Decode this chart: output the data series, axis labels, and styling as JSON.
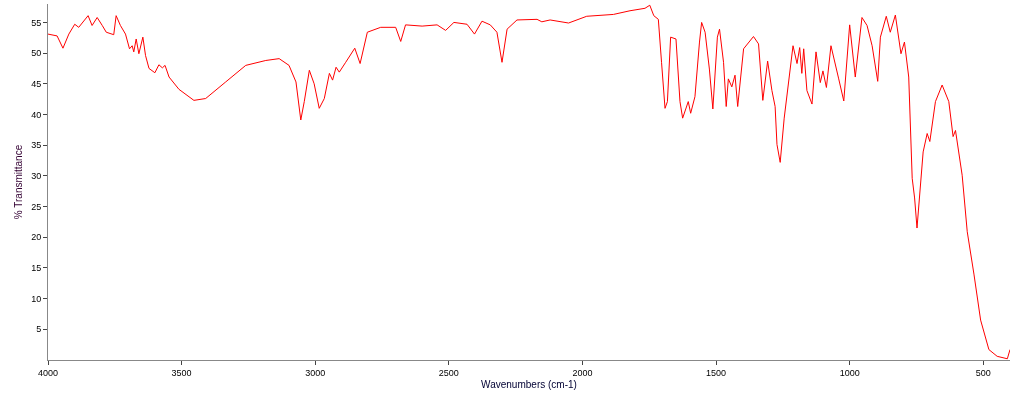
{
  "chart_data": {
    "type": "line",
    "xlabel": "Wavenumbers (cm-1)",
    "ylabel": "% Transmittance",
    "xlim": [
      4000,
      400
    ],
    "xticks": [
      4000,
      3500,
      3000,
      2500,
      2000,
      1500,
      1000,
      500
    ],
    "ylim": [
      0,
      58
    ],
    "yticks": [
      5,
      10,
      15,
      20,
      25,
      30,
      35,
      40,
      45,
      50,
      55
    ],
    "marker": "none",
    "line_style": "solid",
    "series": [
      {
        "color": "#ff0000",
        "x": [
          4000,
          3966,
          3944,
          3922,
          3900,
          3885,
          3850,
          3835,
          3816,
          3797,
          3782,
          3754,
          3745,
          3729,
          3710,
          3695,
          3685,
          3679,
          3670,
          3660,
          3645,
          3635,
          3622,
          3600,
          3585,
          3572,
          3562,
          3547,
          3510,
          3454,
          3410,
          3335,
          3260,
          3185,
          3135,
          3098,
          3072,
          3054,
          3041,
          3022,
          3004,
          2985,
          2966,
          2947,
          2935,
          2922,
          2910,
          2886,
          2852,
          2832,
          2805,
          2755,
          2699,
          2680,
          2662,
          2600,
          2544,
          2512,
          2481,
          2432,
          2404,
          2376,
          2345,
          2320,
          2301,
          2282,
          2245,
          2170,
          2152,
          2121,
          2052,
          1984,
          1884,
          1822,
          1766,
          1748,
          1733,
          1716,
          1704,
          1691,
          1682,
          1670,
          1650,
          1635,
          1625,
          1604,
          1595,
          1579,
          1562,
          1554,
          1541,
          1525,
          1512,
          1495,
          1487,
          1472,
          1462,
          1454,
          1441,
          1429,
          1419,
          1397,
          1360,
          1341,
          1325,
          1307,
          1291,
          1279,
          1272,
          1260,
          1245,
          1212,
          1197,
          1187,
          1179,
          1172,
          1160,
          1141,
          1126,
          1110,
          1100,
          1087,
          1070,
          1041,
          1022,
          1000,
          979,
          954,
          935,
          916,
          895,
          885,
          863,
          848,
          829,
          808,
          795,
          779,
          766,
          757,
          748,
          725,
          710,
          700,
          679,
          654,
          629,
          613,
          604,
          579,
          560,
          535,
          510,
          479,
          448,
          410,
          400
        ],
        "values": [
          53.1,
          52.8,
          50.8,
          53.1,
          54.7,
          54.2,
          56.1,
          54.5,
          55.8,
          54.5,
          53.4,
          53.0,
          56.1,
          54.5,
          53.1,
          50.7,
          51.2,
          50.2,
          52.3,
          49.9,
          52.6,
          49.6,
          47.5,
          46.8,
          48.1,
          47.6,
          48.0,
          46.1,
          44.1,
          42.3,
          42.6,
          45.3,
          48.0,
          48.8,
          49.1,
          48.0,
          45.3,
          39.1,
          42.1,
          47.2,
          45.0,
          41.0,
          42.6,
          46.7,
          45.6,
          47.7,
          46.9,
          48.5,
          50.8,
          48.3,
          53.4,
          54.2,
          54.2,
          51.9,
          54.6,
          54.4,
          54.6,
          53.7,
          55.0,
          54.7,
          53.1,
          55.2,
          54.6,
          53.4,
          48.5,
          53.9,
          55.4,
          55.5,
          55.1,
          55.4,
          54.9,
          56.0,
          56.3,
          56.9,
          57.3,
          57.8,
          56.1,
          55.5,
          48.5,
          41.0,
          42.1,
          52.6,
          52.3,
          42.1,
          39.4,
          42.1,
          40.2,
          42.9,
          51.8,
          55.0,
          53.4,
          47.4,
          40.9,
          52.6,
          53.9,
          48.5,
          41.3,
          45.8,
          44.5,
          46.4,
          41.3,
          50.7,
          52.7,
          51.5,
          42.3,
          48.7,
          43.9,
          41.3,
          35.1,
          32.2,
          39.4,
          51.2,
          48.3,
          50.9,
          46.7,
          50.7,
          43.9,
          41.7,
          50.2,
          45.2,
          47.1,
          44.4,
          51.2,
          45.8,
          42.2,
          54.6,
          46.1,
          55.8,
          54.5,
          51.2,
          45.4,
          52.6,
          56.0,
          53.4,
          56.2,
          49.9,
          51.8,
          46.1,
          29.6,
          26.4,
          21.5,
          33.9,
          36.9,
          35.6,
          42.1,
          44.8,
          42.1,
          36.4,
          37.4,
          30.1,
          20.9,
          14.0,
          6.5,
          1.7,
          0.6,
          0.2,
          1.7
        ]
      }
    ]
  }
}
